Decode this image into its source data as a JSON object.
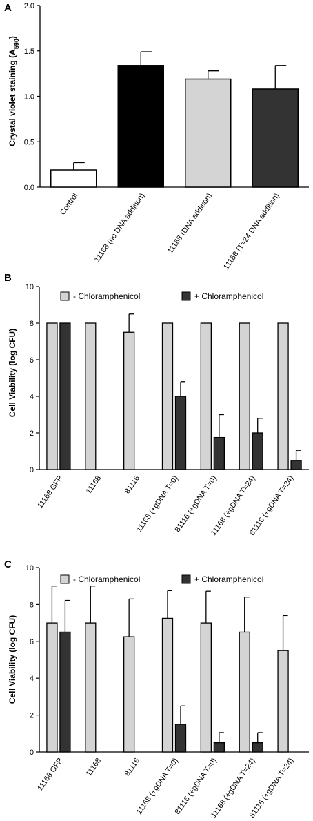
{
  "chart_data": [
    {
      "panel": "A",
      "type": "bar",
      "ylabel": "Crystal violet staining (A590)",
      "ylabel_main": "Crystal violet staining (A",
      "ylabel_sub": "590",
      "ylabel_close": ")",
      "ylim": [
        0,
        2.0
      ],
      "yticks": [
        "0.0",
        "0.5",
        "1.0",
        "1.5",
        "2.0"
      ],
      "categories": [
        "Control",
        "11168 (no DNA addition)",
        "11168 (DNA addition)",
        "11168 (T=24 DNA addition)"
      ],
      "values": [
        0.19,
        1.34,
        1.19,
        1.08
      ],
      "errors": [
        0.08,
        0.15,
        0.09,
        0.26
      ],
      "colors": [
        "#ffffff",
        "#000000",
        "#d4d4d4",
        "#333333"
      ]
    },
    {
      "panel": "B",
      "type": "bar",
      "ylabel": "Cell Viability (log CFU)",
      "ylim": [
        0,
        10
      ],
      "yticks": [
        "0",
        "2",
        "4",
        "6",
        "8",
        "10"
      ],
      "categories": [
        "11168 GFP",
        "11168",
        "81116",
        "11168 (+gDNA T=0)",
        "81116 (+gDNA T=0)",
        "11168 (+gDNA T=24)",
        "81116 (+gDNA T=24)"
      ],
      "legend": {
        "placement": "top",
        "entries": [
          "- Chloramphenicol",
          "+ Chloramphenicol"
        ]
      },
      "series": [
        {
          "name": "- Chloramphenicol",
          "color": "#d4d4d4",
          "values": [
            8,
            8,
            7.5,
            8,
            8,
            8,
            8
          ],
          "errors": [
            0,
            0,
            1.0,
            0,
            0,
            0,
            0
          ]
        },
        {
          "name": "+ Chloramphenicol",
          "color": "#333333",
          "values": [
            8,
            0,
            0,
            4,
            1.75,
            2,
            0.5
          ],
          "errors": [
            0,
            0,
            0,
            0.8,
            1.25,
            0.8,
            0.55
          ]
        }
      ]
    },
    {
      "panel": "C",
      "type": "bar",
      "ylabel": "Cell Viability (log CFU)",
      "ylim": [
        0,
        10
      ],
      "yticks": [
        "0",
        "2",
        "4",
        "6",
        "8",
        "10"
      ],
      "categories": [
        "11168 GFP",
        "11168",
        "81116",
        "11168 (+gDNA T=0)",
        "81116 (+gDNA T=0)",
        "11168 (+gDNA T=24)",
        "81116 (+gDNA T=24)"
      ],
      "legend": {
        "placement": "top",
        "entries": [
          "- Chloramphenicol",
          "+ Chloramphenicol"
        ]
      },
      "series": [
        {
          "name": "- Chloramphenicol",
          "color": "#d4d4d4",
          "values": [
            7,
            7,
            6.25,
            7.25,
            7,
            6.5,
            5.5
          ],
          "errors": [
            2.0,
            2.0,
            2.05,
            1.5,
            1.72,
            1.9,
            1.9
          ]
        },
        {
          "name": "+ Chloramphenicol",
          "color": "#333333",
          "values": [
            6.5,
            0,
            0,
            1.5,
            0.5,
            0.5,
            0
          ],
          "errors": [
            1.72,
            0,
            0,
            1.0,
            0.55,
            0.55,
            0
          ]
        }
      ]
    }
  ]
}
